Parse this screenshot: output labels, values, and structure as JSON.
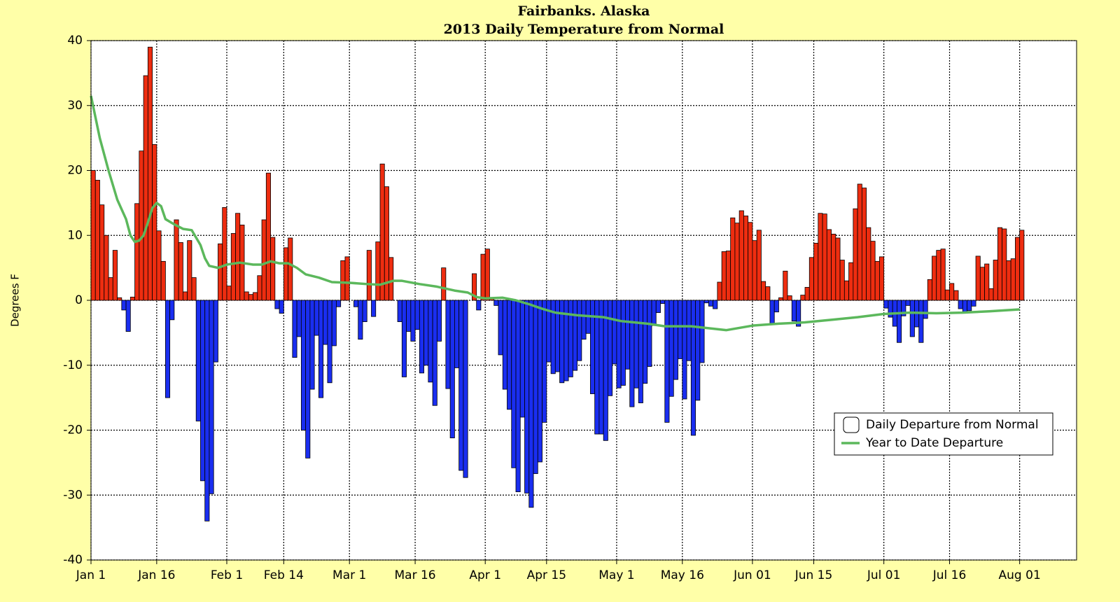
{
  "chart_data": {
    "type": "bar",
    "title": "Fairbanks. Alaska",
    "subtitle": "2013 Daily Temperature from Normal",
    "y_label": "Degrees F",
    "xlim": [
      1,
      226
    ],
    "xticks": [
      {
        "value": 1,
        "label": "Jan 1"
      },
      {
        "value": 16,
        "label": "Jan 16"
      },
      {
        "value": 32,
        "label": "Feb 1"
      },
      {
        "value": 45,
        "label": "Feb 14"
      },
      {
        "value": 60,
        "label": "Mar 1"
      },
      {
        "value": 75,
        "label": "Mar 16"
      },
      {
        "value": 91,
        "label": "Apr 1"
      },
      {
        "value": 105,
        "label": "Apr 15"
      },
      {
        "value": 121,
        "label": "May 1"
      },
      {
        "value": 136,
        "label": "May 16"
      },
      {
        "value": 152,
        "label": "Jun 01"
      },
      {
        "value": 166,
        "label": "Jun 15"
      },
      {
        "value": 182,
        "label": "Jul 01"
      },
      {
        "value": 197,
        "label": "Jul 16"
      },
      {
        "value": 213,
        "label": "Aug 01"
      }
    ],
    "ylim": [
      -40,
      40
    ],
    "yticks": [
      -40,
      -30,
      -20,
      -10,
      0,
      10,
      20,
      30,
      40
    ],
    "grid": true,
    "legend_position": "lower right",
    "series": [
      {
        "name": "Daily Departure from Normal",
        "type": "bar",
        "positive_color": "#ee2d10",
        "negative_color": "#1a2ef0",
        "legend_color": "#ffffff",
        "x": [
          1,
          2,
          3,
          4,
          5,
          6,
          7,
          8,
          9,
          10,
          11,
          12,
          13,
          14,
          15,
          16,
          17,
          18,
          19,
          20,
          21,
          22,
          23,
          24,
          25,
          26,
          27,
          28,
          29,
          30,
          31,
          32,
          33,
          34,
          35,
          36,
          37,
          38,
          39,
          40,
          41,
          42,
          43,
          44,
          45,
          46,
          47,
          48,
          49,
          50,
          51,
          52,
          53,
          54,
          55,
          56,
          57,
          58,
          59,
          60,
          61,
          62,
          63,
          64,
          65,
          66,
          67,
          68,
          69,
          70,
          71,
          72,
          73,
          74,
          75,
          76,
          77,
          78,
          79,
          80,
          81,
          82,
          83,
          84,
          85,
          86,
          87,
          88,
          89,
          90,
          91,
          92,
          93,
          94,
          95,
          96,
          97,
          98,
          99,
          100,
          101,
          102,
          103,
          104,
          105,
          106,
          107,
          108,
          109,
          110,
          111,
          112,
          113,
          114,
          115,
          116,
          117,
          118,
          119,
          120,
          121,
          122,
          123,
          124,
          125,
          126,
          127,
          128,
          129,
          130,
          131,
          132,
          133,
          134,
          135,
          136,
          137,
          138,
          139,
          140,
          141,
          142,
          143,
          144,
          145,
          146,
          147,
          148,
          149,
          150,
          151,
          152,
          153,
          154,
          155,
          156,
          157,
          158,
          159,
          160,
          161,
          162,
          163,
          164,
          165,
          166,
          167,
          168,
          169,
          170,
          171,
          172,
          173,
          174,
          175,
          176,
          177,
          178,
          179,
          180,
          181,
          182,
          183,
          184,
          185,
          186,
          187,
          188,
          189,
          190,
          191,
          192,
          193,
          194,
          195,
          196,
          197,
          198,
          199,
          200,
          201,
          202,
          203,
          204,
          205,
          206,
          207,
          208,
          209,
          210,
          211,
          212,
          213
        ],
        "values": [
          20,
          18.5,
          14.7,
          10,
          3.5,
          7.7,
          0.4,
          -1.5,
          -4.8,
          0.5,
          14.9,
          23,
          34.6,
          39,
          24,
          10.7,
          6,
          -15,
          -3,
          12.4,
          8.9,
          1.3,
          9.2,
          3.5,
          -18.6,
          -27.8,
          -34,
          -29.8,
          -9.5,
          8.7,
          14.3,
          2.2,
          10.3,
          13.4,
          11.6,
          1.3,
          0.9,
          1.2,
          3.8,
          12.4,
          19.6,
          9.7,
          -1.3,
          -2,
          8.1,
          9.6,
          -8.8,
          -5.6,
          -20,
          -24.3,
          -13.7,
          -5.4,
          -15,
          -6.8,
          -12.7,
          -7,
          -1,
          6.1,
          6.7,
          0,
          -1,
          -6,
          -3.3,
          7.7,
          -2.5,
          9,
          21,
          17.5,
          6.6,
          0,
          -3.3,
          -11.8,
          -4.8,
          -6.3,
          -4.5,
          -11.2,
          -10,
          -12.6,
          -16.2,
          -6.3,
          5,
          -13.6,
          -21.2,
          -10.4,
          -26.2,
          -27.3,
          0,
          4.1,
          -1.5,
          7.1,
          7.9,
          0.3,
          -0.8,
          -8.4,
          -13.7,
          -16.8,
          -25.8,
          -29.5,
          -18,
          -29.7,
          -31.9,
          -26.7,
          -24.9,
          -18.8,
          -9.5,
          -11.3,
          -11,
          -12.7,
          -12.4,
          -11.8,
          -10.8,
          -9.3,
          -6,
          -5.1,
          -14.4,
          -20.6,
          -20.6,
          -21.6,
          -14.7,
          -9.8,
          -13.5,
          -13.1,
          -10.6,
          -16.4,
          -13.5,
          -15.8,
          -12.8,
          -10.2,
          -3.9,
          -1.9,
          -0.5,
          -18.8,
          -14.8,
          -12.2,
          -9,
          -15.2,
          -9.3,
          -20.8,
          -15.4,
          -9.6,
          -0.4,
          -0.9,
          -1.3,
          2.8,
          7.5,
          7.6,
          12.7,
          11.9,
          13.8,
          13,
          12,
          9.2,
          10.8,
          2.9,
          2.1,
          -3.7,
          -1.8,
          0.4,
          4.5,
          0.7,
          -3.2,
          -4,
          0.8,
          2,
          6.6,
          8.8,
          13.4,
          13.3,
          10.9,
          10.2,
          9.6,
          6.2,
          3,
          5.8,
          14.1,
          17.9,
          17.3,
          11.2,
          9.1,
          6,
          6.7,
          -1.2,
          -2.6,
          -4,
          -6.5,
          -2.4,
          -0.8,
          -5.6,
          -4.1,
          -6.5,
          -2.8,
          3.2,
          6.8,
          7.7,
          7.9,
          1.6,
          2.6,
          1.5,
          -1.3,
          -2,
          -1.6,
          -0.9,
          6.8,
          5.1,
          5.6,
          1.8,
          6.2,
          11.2,
          11,
          6.1,
          6.4,
          9.7,
          10.8
        ]
      },
      {
        "name": "Year to Date Departure",
        "type": "line",
        "color": "#5cb85c",
        "x": [
          1,
          3,
          5,
          7,
          9,
          10,
          11,
          12,
          13,
          14,
          15,
          16,
          17,
          18,
          20,
          22,
          24,
          26,
          27,
          28,
          30,
          32,
          35,
          38,
          40,
          42,
          44,
          46,
          48,
          50,
          53,
          56,
          60,
          64,
          67,
          70,
          72,
          76,
          80,
          84,
          87,
          89,
          91,
          95,
          98,
          101,
          104,
          107,
          112,
          118,
          122,
          128,
          132,
          138,
          142,
          146,
          152,
          158,
          164,
          170,
          176,
          182,
          188,
          194,
          200,
          206,
          213
        ],
        "values": [
          31.5,
          25,
          20,
          15.5,
          12.5,
          10,
          9,
          9.2,
          10,
          12,
          14.2,
          15,
          14.5,
          12.5,
          11.7,
          11,
          10.8,
          8.5,
          6.5,
          5.3,
          5,
          5.5,
          5.8,
          5.5,
          5.5,
          6,
          5.7,
          5.7,
          5,
          4,
          3.5,
          2.8,
          2.7,
          2.5,
          2.4,
          3,
          3,
          2.5,
          2.1,
          1.5,
          1.2,
          0.5,
          0.3,
          0.4,
          0,
          -0.6,
          -1.3,
          -1.9,
          -2.3,
          -2.6,
          -3.2,
          -3.6,
          -4,
          -4,
          -4.3,
          -4.6,
          -3.9,
          -3.6,
          -3.4,
          -3,
          -2.6,
          -2.1,
          -1.9,
          -2,
          -1.9,
          -1.7,
          -1.4
        ]
      }
    ]
  }
}
